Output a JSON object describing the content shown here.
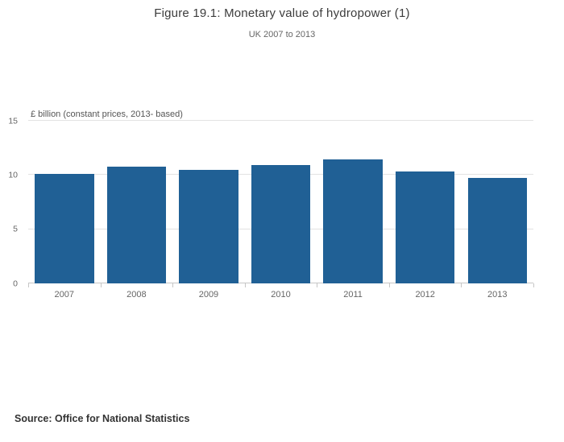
{
  "header": {
    "title": "Figure 19.1: Monetary value of hydropower (1)",
    "subtitle": "UK 2007 to 2013"
  },
  "chart_data": {
    "type": "bar",
    "title": "Figure 19.1: Monetary value of hydropower (1)",
    "subtitle": "UK 2007 to 2013",
    "categories": [
      "2007",
      "2008",
      "2009",
      "2010",
      "2011",
      "2012",
      "2013"
    ],
    "values": [
      10.1,
      10.75,
      10.45,
      10.9,
      11.45,
      10.35,
      9.7
    ],
    "ylabel": "£ billion (constant prices, 2013- based)",
    "xlabel": "",
    "yticks": [
      0,
      5,
      10,
      15
    ],
    "ylim": [
      0,
      15
    ],
    "grid": true,
    "legend": "none",
    "bar_color": "#206095"
  },
  "footer": {
    "source": "Source: Office for National Statistics"
  }
}
